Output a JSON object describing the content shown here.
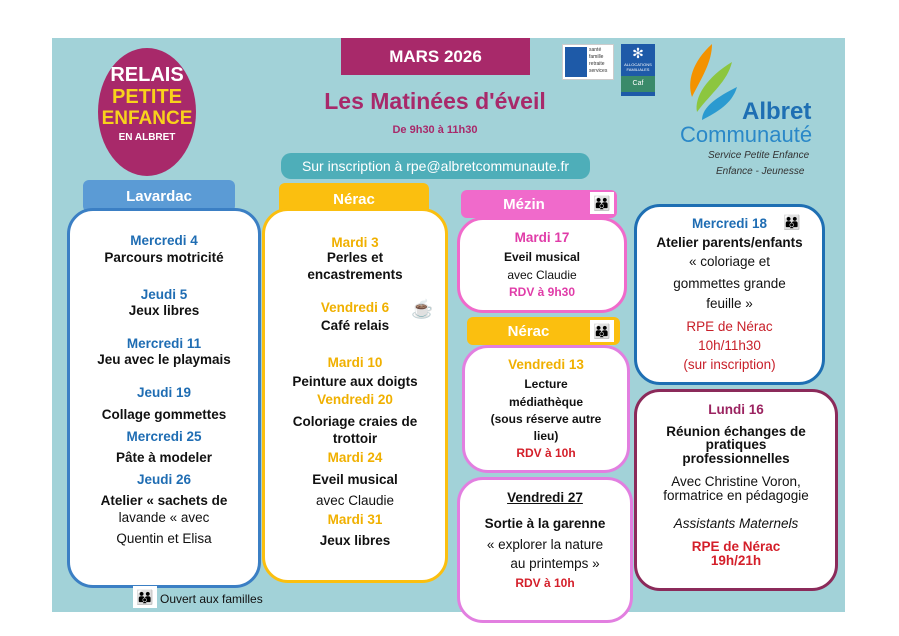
{
  "header": {
    "month": "MARS 2026",
    "title": "Les Matinées d'éveil",
    "hours": "De 9h30 à 11h30",
    "inscription": "Sur inscription à rpe@albretcommunaute.fr"
  },
  "logos": {
    "rpe": [
      "RELAIS",
      "PETITE",
      "ENFANCE",
      "EN ALBRET"
    ],
    "msa": [
      "santé",
      "famille",
      "retraite",
      "services"
    ],
    "caf": [
      "ALLOCATIONS FAMILIALES",
      "Caf"
    ],
    "albret": {
      "name1": "Albret",
      "name2": "Communauté",
      "sub1": "Service Petite Enfance",
      "sub2": "Enfance - Jeunesse"
    }
  },
  "lavardac": {
    "label": "Lavardac",
    "lines": [
      "Mercredi 4",
      "Parcours motricité",
      "Jeudi 5",
      "Jeux libres",
      "Mercredi 11",
      "Jeu avec le playmais",
      "Jeudi 19",
      "Collage gommettes",
      "Mercredi 25",
      "Pâte à modeler",
      "Jeudi 26",
      "Atelier « sachets de",
      "lavande « avec",
      "Quentin et Elisa"
    ]
  },
  "nerac": {
    "label": "Nérac",
    "lines": [
      "Mardi 3",
      "Perles et",
      "encastrements",
      "Vendredi 6",
      "Café relais",
      "Mardi 10",
      "Peinture aux doigts",
      "Vendredi 20",
      "Coloriage craies de",
      "trottoir",
      "Mardi 24",
      "Eveil musical",
      "avec Claudie",
      "Mardi 31",
      "Jeux libres"
    ]
  },
  "mezin": {
    "label": "Mézin",
    "lines": [
      "Mardi 17",
      "Eveil musical",
      "avec Claudie",
      "RDV à 9h30"
    ]
  },
  "nerac2": {
    "label": "Nérac",
    "lines": [
      "Vendredi 13",
      "Lecture",
      "médiathèque",
      "(sous réserve autre",
      "lieu)",
      "RDV à 10h"
    ]
  },
  "sortie": {
    "lines": [
      "Vendredi 27",
      "Sortie à la garenne",
      "« explorer la nature",
      "au printemps »",
      "RDV à 10h"
    ]
  },
  "atelier": {
    "lines": [
      "Mercredi 18",
      "Atelier parents/enfants",
      "« coloriage et",
      "gommettes grande",
      "feuille »",
      "RPE de Nérac",
      "10h/11h30",
      "(sur inscription)"
    ]
  },
  "reunion": {
    "lines": [
      "Lundi 16",
      "Réunion échanges de",
      "pratiques",
      "professionnelles",
      "Avec Christine Voron,",
      "formatrice en pédagogie",
      "Assistants Maternels",
      "RPE de Nérac",
      "19h/21h"
    ]
  },
  "legend": {
    "label": "Ouvert aux familles"
  },
  "colors": {
    "background": "#a2d2d8",
    "month": "#a8296a",
    "lavardac": "#5b9bd5",
    "nerac": "#fbbf0f",
    "mezin": "#f06acb"
  }
}
